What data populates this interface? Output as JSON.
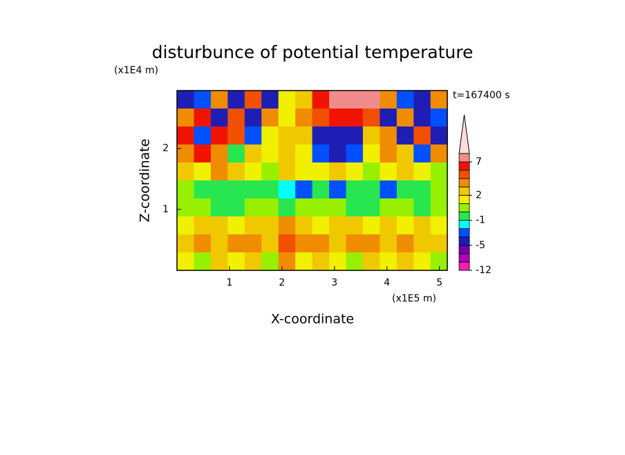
{
  "chart_data": {
    "type": "contour",
    "title": "disturbunce of potential temperature",
    "time_label": "t=167400 s",
    "xlabel": "X-coordinate",
    "x_unit": "(x1E5 m)",
    "ylabel": "Z-coordinate",
    "y_unit": "(x1E4 m)",
    "xlim": [
      0,
      5.15
    ],
    "ylim": [
      0,
      2.95
    ],
    "xticks": [
      1,
      2,
      3,
      4,
      5
    ],
    "yticks": [
      1,
      2
    ],
    "x": [
      0.161,
      0.483,
      0.805,
      1.127,
      1.449,
      1.771,
      2.093,
      2.415,
      2.737,
      3.059,
      3.381,
      3.703,
      4.025,
      4.347,
      4.669,
      4.991
    ],
    "y": [
      2.803,
      2.508,
      2.213,
      1.918,
      1.623,
      1.328,
      1.033,
      0.738,
      0.443,
      0.148
    ],
    "z": [
      [
        -5,
        -3,
        3,
        -5,
        4,
        -5,
        1,
        2,
        5,
        7,
        8,
        7,
        3,
        -3,
        -5,
        3
      ],
      [
        3,
        5,
        -5,
        4,
        -5,
        3,
        1,
        3,
        4,
        5,
        5,
        4,
        -5,
        3,
        -5,
        -3
      ],
      [
        5,
        -3,
        5,
        4,
        -3,
        1,
        2,
        2,
        -5,
        -5,
        -5,
        2,
        3,
        -5,
        4,
        -5
      ],
      [
        3,
        5,
        3,
        -1,
        2,
        1,
        2,
        1,
        -3,
        -5,
        -3,
        1,
        3,
        2,
        -3,
        3
      ],
      [
        2,
        1,
        3,
        2,
        1,
        0,
        2,
        1,
        1,
        2,
        1,
        0,
        1,
        2,
        1,
        0
      ],
      [
        0,
        -1,
        -1,
        -1,
        -1,
        -1,
        -2,
        -3,
        -1,
        -3,
        -1,
        -1,
        -3,
        -1,
        -1,
        0
      ],
      [
        0,
        0,
        -1,
        -1,
        0,
        0,
        -1,
        0,
        0,
        0,
        -1,
        -1,
        0,
        0,
        -1,
        0
      ],
      [
        1,
        2,
        2,
        1,
        2,
        2,
        3,
        2,
        1,
        2,
        2,
        1,
        2,
        1,
        2,
        1
      ],
      [
        2,
        3,
        2,
        3,
        3,
        2,
        4,
        3,
        3,
        2,
        3,
        3,
        2,
        3,
        2,
        2
      ],
      [
        1,
        0,
        2,
        1,
        2,
        0,
        3,
        1,
        2,
        1,
        0,
        2,
        1,
        2,
        1,
        0
      ]
    ],
    "clevs": [
      -12,
      -9,
      -7,
      -5,
      -3,
      -2,
      -1,
      0,
      1,
      2,
      3,
      4,
      5,
      7,
      9
    ],
    "colors": [
      "#f01eb4",
      "#b400b4",
      "#6e00b4",
      "#1e1eb4",
      "#0050ff",
      "#00ffff",
      "#28e650",
      "#96f000",
      "#f0f000",
      "#f0c800",
      "#f08c00",
      "#f05000",
      "#f01400",
      "#f08c8c"
    ],
    "over_color": "#ffdcdc",
    "colorbar_ticks": [
      7,
      2,
      -1,
      -5,
      -12
    ]
  }
}
